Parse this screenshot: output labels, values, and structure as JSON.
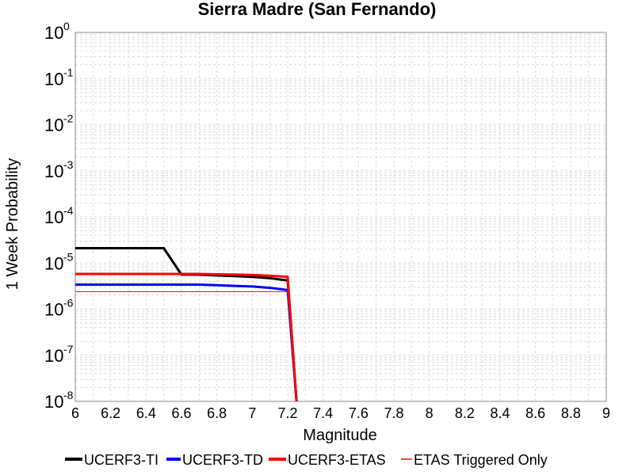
{
  "chart_data": {
    "type": "line",
    "title": "Sierra Madre (San Fernando)",
    "xlabel": "Magnitude",
    "ylabel": "1 Week Probability",
    "xlim": [
      6,
      9
    ],
    "ylim": [
      1e-08,
      1
    ],
    "yscale": "log",
    "x_ticks": [
      "6",
      "6.2",
      "6.4",
      "6.6",
      "6.8",
      "7",
      "7.2",
      "7.4",
      "7.6",
      "7.8",
      "8",
      "8.2",
      "8.4",
      "8.6",
      "8.8",
      "9"
    ],
    "y_ticks": [
      {
        "base": "10",
        "exp": "0"
      },
      {
        "base": "10",
        "exp": "-1"
      },
      {
        "base": "10",
        "exp": "-2"
      },
      {
        "base": "10",
        "exp": "-3"
      },
      {
        "base": "10",
        "exp": "-4"
      },
      {
        "base": "10",
        "exp": "-5"
      },
      {
        "base": "10",
        "exp": "-6"
      },
      {
        "base": "10",
        "exp": "-7"
      },
      {
        "base": "10",
        "exp": "-8"
      }
    ],
    "grid": true,
    "legend_position": "bottom",
    "series": [
      {
        "name": "UCERF3-TI",
        "color": "#000000",
        "width": 3,
        "x": [
          6.0,
          6.5,
          6.6,
          6.7,
          6.8,
          6.9,
          7.0,
          7.1,
          7.2,
          7.25
        ],
        "y": [
          2.1e-05,
          2.1e-05,
          5.6e-06,
          5.6e-06,
          5.4e-06,
          5.2e-06,
          5e-06,
          4.7e-06,
          4.2e-06,
          1e-09
        ]
      },
      {
        "name": "UCERF3-TD",
        "color": "#0000ff",
        "width": 3,
        "x": [
          6.0,
          6.7,
          6.8,
          6.9,
          7.0,
          7.1,
          7.2,
          7.25
        ],
        "y": [
          3.4e-06,
          3.4e-06,
          3.3e-06,
          3.2e-06,
          3.1e-06,
          2.9e-06,
          2.6e-06,
          1e-09
        ]
      },
      {
        "name": "UCERF3-ETAS",
        "color": "#ff0000",
        "width": 3,
        "x": [
          6.0,
          6.7,
          6.8,
          6.9,
          7.0,
          7.1,
          7.2,
          7.25
        ],
        "y": [
          5.8e-06,
          5.8e-06,
          5.7e-06,
          5.6e-06,
          5.5e-06,
          5.3e-06,
          5e-06,
          1e-09
        ]
      },
      {
        "name": "ETAS Triggered Only",
        "color": "#ff0000",
        "width": 1,
        "x": [
          6.0,
          7.2,
          7.25
        ],
        "y": [
          2.4e-06,
          2.4e-06,
          1e-09
        ]
      }
    ]
  }
}
